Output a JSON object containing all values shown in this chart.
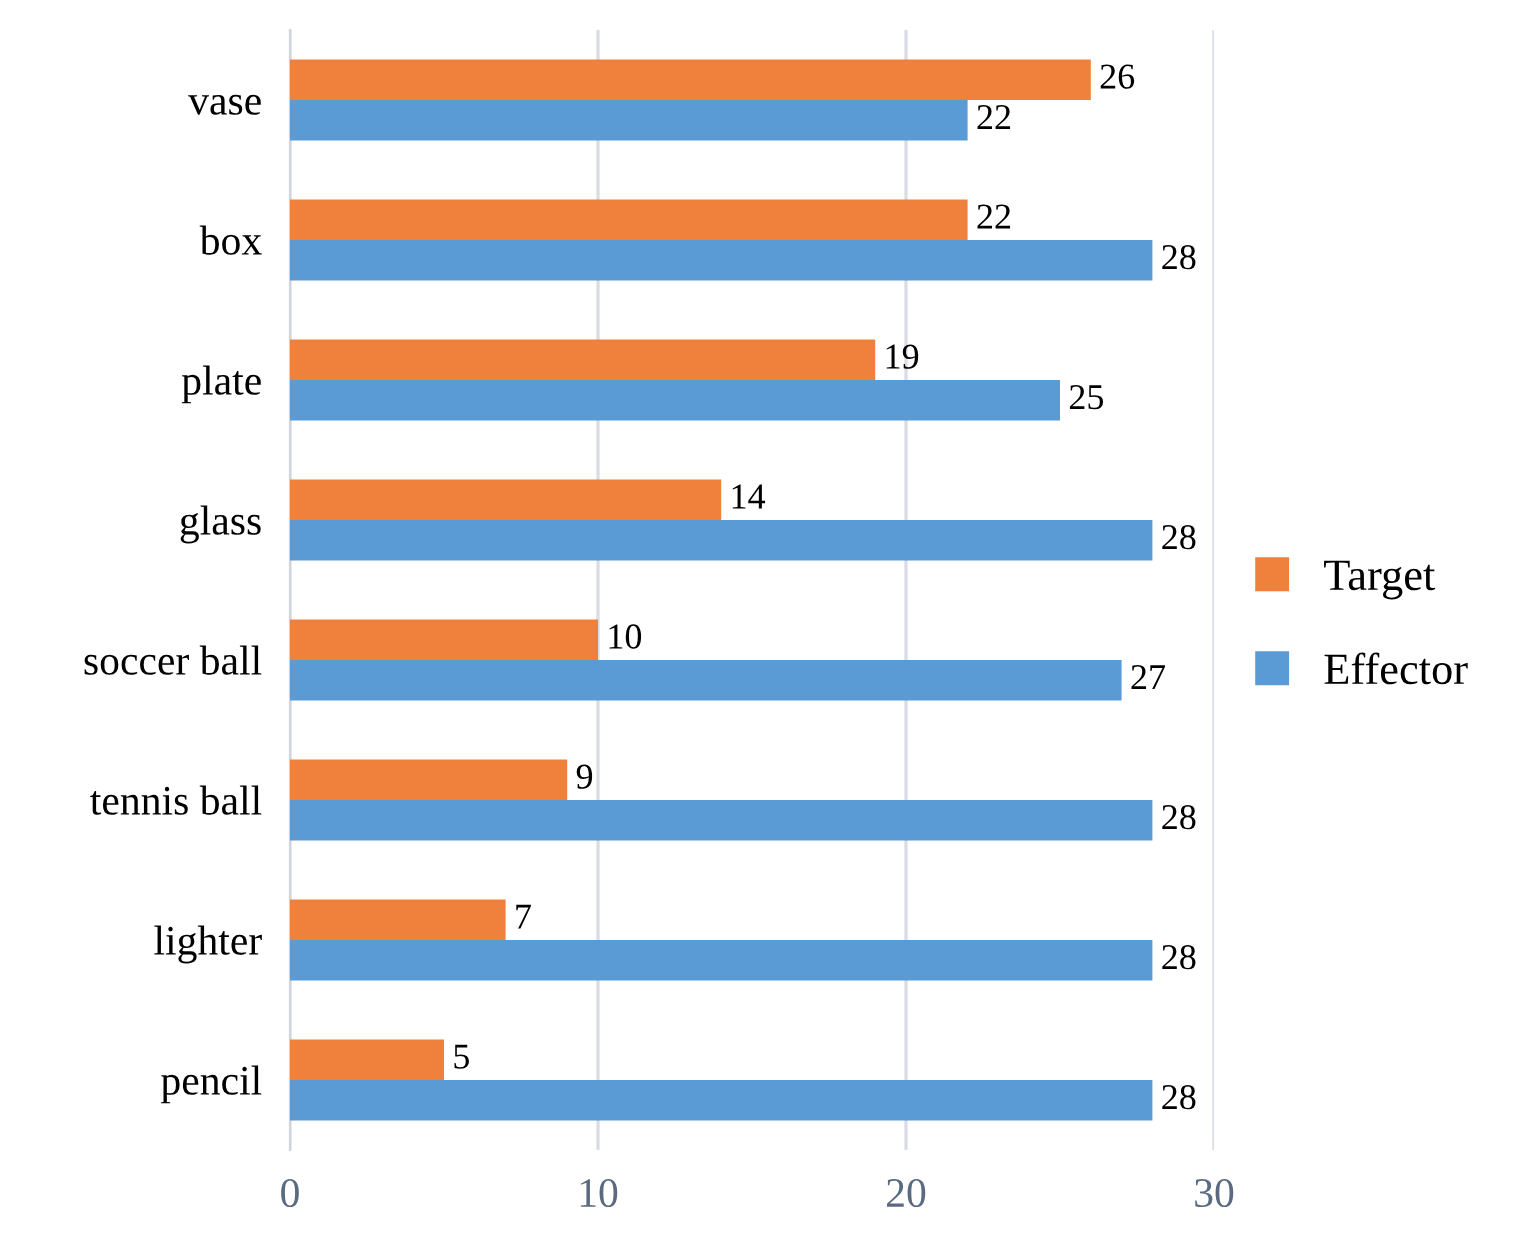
{
  "chart_data": {
    "type": "bar",
    "orientation": "horizontal",
    "categories": [
      "vase",
      "box",
      "plate",
      "glass",
      "soccer ball",
      "tennis ball",
      "lighter",
      "pencil"
    ],
    "series": [
      {
        "name": "Target",
        "color": "#f0813c",
        "values": [
          26,
          22,
          19,
          14,
          10,
          9,
          7,
          5
        ]
      },
      {
        "name": "Effector",
        "color": "#5b9bd5",
        "values": [
          22,
          28,
          25,
          28,
          27,
          28,
          28,
          28
        ]
      }
    ],
    "xlim": [
      0,
      30
    ],
    "xticks": [
      0,
      10,
      20,
      30
    ],
    "grid": "x",
    "legend": "right",
    "data_labels": true
  }
}
